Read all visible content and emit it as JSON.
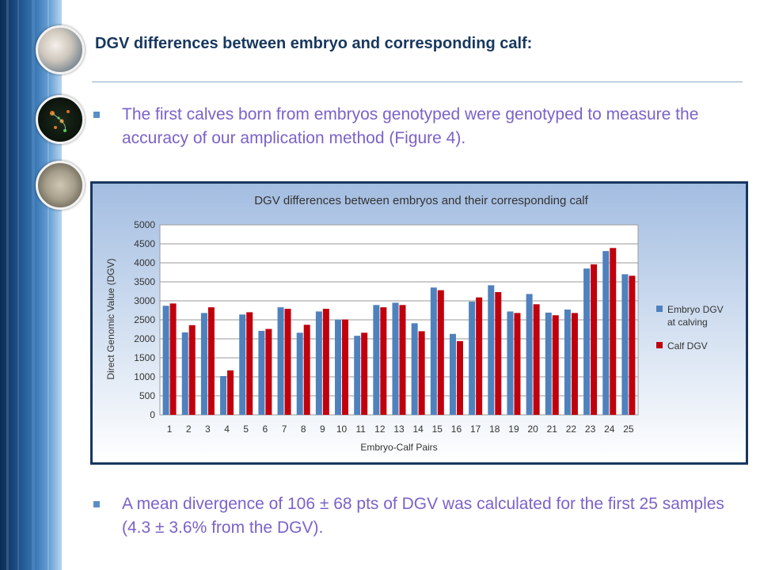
{
  "slide": {
    "title": "DGV differences between embryo and corresponding calf:",
    "bullet1": "The first calves born from embryos genotyped were genotyped to measure the accuracy of our amplication method (Figure 4).",
    "bullet2": "A mean divergence of 106 ± 68 pts of DGV was calculated for the first 25 samples (4.3 ± 3.6% from the DGV)."
  },
  "chart_data": {
    "type": "bar",
    "title": "DGV differences between embryos and their corresponding calf",
    "xlabel": "Embryo-Calf Pairs",
    "ylabel": "Direct Genomic Value (DGV)",
    "ylim": [
      0,
      5000
    ],
    "yticks": [
      0,
      500,
      1000,
      1500,
      2000,
      2500,
      3000,
      3500,
      4000,
      4500,
      5000
    ],
    "grid": true,
    "legend_position": "right",
    "categories": [
      "1",
      "2",
      "3",
      "4",
      "5",
      "6",
      "7",
      "8",
      "9",
      "10",
      "11",
      "12",
      "13",
      "14",
      "15",
      "16",
      "17",
      "18",
      "19",
      "20",
      "21",
      "22",
      "23",
      "24",
      "25"
    ],
    "series": [
      {
        "name": "Embryo DGV at calving",
        "color": "#4f81bd",
        "values": [
          2870,
          2170,
          2680,
          1020,
          2640,
          2210,
          2830,
          2160,
          2720,
          2510,
          2080,
          2890,
          2950,
          2410,
          3350,
          2130,
          2980,
          3410,
          2720,
          3180,
          2690,
          2770,
          3850,
          4310,
          3700
        ]
      },
      {
        "name": "Calf DGV",
        "color": "#c0000d",
        "values": [
          2930,
          2360,
          2830,
          1170,
          2700,
          2260,
          2790,
          2370,
          2790,
          2510,
          2160,
          2830,
          2890,
          2200,
          3280,
          1940,
          3090,
          3230,
          2680,
          2910,
          2620,
          2680,
          3960,
          4390,
          3660
        ]
      }
    ]
  }
}
